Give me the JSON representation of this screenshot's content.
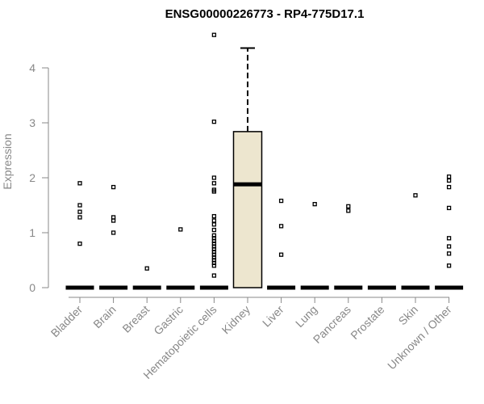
{
  "chart_data": {
    "type": "box",
    "title": "ENSG00000226773 - RP4-775D17.1",
    "xlabel": "",
    "ylabel": "Expression",
    "ylim": [
      0,
      4.6
    ],
    "yticks": [
      0,
      1,
      2,
      3,
      4
    ],
    "grid": false,
    "colors": {
      "box_fill": "#ede6cf",
      "axis": "#888888",
      "marks": "#000000"
    },
    "categories": [
      "Bladder",
      "Brain",
      "Breast",
      "Gastric",
      "Hematopoietic cells",
      "Kidney",
      "Liver",
      "Lung",
      "Pancreas",
      "Prostate",
      "Skin",
      "Unknown / Other"
    ],
    "boxes": [
      {
        "category": "Bladder",
        "median": 0,
        "q1": 0,
        "q3": 0,
        "whisker_low": 0,
        "whisker_high": 0,
        "outliers": [
          0.8,
          1.28,
          1.38,
          1.5,
          1.9
        ]
      },
      {
        "category": "Brain",
        "median": 0,
        "q1": 0,
        "q3": 0,
        "whisker_low": 0,
        "whisker_high": 0,
        "outliers": [
          1.0,
          1.22,
          1.28,
          1.83
        ]
      },
      {
        "category": "Breast",
        "median": 0,
        "q1": 0,
        "q3": 0,
        "whisker_low": 0,
        "whisker_high": 0,
        "outliers": [
          0.35
        ]
      },
      {
        "category": "Gastric",
        "median": 0,
        "q1": 0,
        "q3": 0,
        "whisker_low": 0,
        "whisker_high": 0,
        "outliers": [
          1.06
        ]
      },
      {
        "category": "Hematopoietic cells",
        "median": 0,
        "q1": 0,
        "q3": 0,
        "whisker_low": 0,
        "whisker_high": 0,
        "outliers": [
          0.22,
          0.4,
          0.45,
          0.5,
          0.55,
          0.6,
          0.65,
          0.7,
          0.75,
          0.8,
          0.85,
          0.9,
          0.95,
          1.05,
          1.15,
          1.22,
          1.3,
          1.75,
          1.78,
          1.9,
          2.0,
          3.02,
          4.6
        ]
      },
      {
        "category": "Kidney",
        "median": 1.88,
        "q1": 0,
        "q3": 2.84,
        "whisker_low": 0,
        "whisker_high": 4.36,
        "outliers": []
      },
      {
        "category": "Liver",
        "median": 0,
        "q1": 0,
        "q3": 0,
        "whisker_low": 0,
        "whisker_high": 0,
        "outliers": [
          0.6,
          1.12,
          1.58
        ]
      },
      {
        "category": "Lung",
        "median": 0,
        "q1": 0,
        "q3": 0,
        "whisker_low": 0,
        "whisker_high": 0,
        "outliers": [
          1.52
        ]
      },
      {
        "category": "Pancreas",
        "median": 0,
        "q1": 0,
        "q3": 0,
        "whisker_low": 0,
        "whisker_high": 0,
        "outliers": [
          1.4,
          1.48
        ]
      },
      {
        "category": "Prostate",
        "median": 0,
        "q1": 0,
        "q3": 0,
        "whisker_low": 0,
        "whisker_high": 0,
        "outliers": []
      },
      {
        "category": "Skin",
        "median": 0,
        "q1": 0,
        "q3": 0,
        "whisker_low": 0,
        "whisker_high": 0,
        "outliers": [
          1.68
        ]
      },
      {
        "category": "Unknown / Other",
        "median": 0,
        "q1": 0,
        "q3": 0,
        "whisker_low": 0,
        "whisker_high": 0,
        "outliers": [
          0.4,
          0.62,
          0.75,
          0.9,
          1.45,
          1.83,
          1.95,
          2.02
        ]
      }
    ]
  }
}
